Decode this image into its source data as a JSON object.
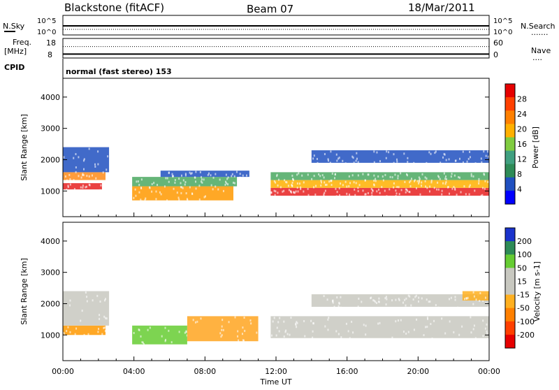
{
  "header": {
    "station": "Blackstone (fitACF)",
    "beam": "Beam 07",
    "date": "18/Mar/2011"
  },
  "noise": {
    "left_label": "N.Sky",
    "right_label": "N.Search",
    "tick_top": "10^5",
    "tick_bottom": "10^0",
    "right_marker": "......."
  },
  "freq": {
    "label_top": "Freq.",
    "label_unit": "[MHz]",
    "left_ticks": [
      "18",
      "8"
    ],
    "right_ticks": [
      "60",
      "0"
    ],
    "right_label": "Nave",
    "right_marker": "....",
    "freq_value": 10.0,
    "nave_value": 35
  },
  "cpid": {
    "label": "CPID",
    "value": "normal (fast stereo) 153"
  },
  "chart_data": [
    {
      "type": "heatmap",
      "name": "power",
      "ylabel": "Slant Range [km]",
      "xlabel": "Time UT",
      "x_ticks": [
        "00:00",
        "04:00",
        "08:00",
        "12:00",
        "16:00",
        "20:00",
        "00:00"
      ],
      "x_range_hours": [
        0,
        24
      ],
      "y_ticks": [
        "1000",
        "2000",
        "3000",
        "4000"
      ],
      "y_tick_values": [
        1000,
        2000,
        3000,
        4000
      ],
      "ylim": [
        180,
        4600
      ],
      "colorbar_label": "Power [dB]",
      "colorbar_ticks": [
        "28",
        "24",
        "20",
        "16",
        "12",
        "8",
        "4"
      ],
      "colorbar_colors": [
        "#e60000",
        "#ff4000",
        "#ff8000",
        "#ffb000",
        "#80cc40",
        "#40a080",
        "#2e8b57",
        "#2050c0",
        "#0000ff"
      ],
      "bands": [
        {
          "t": [
            0.0,
            2.2
          ],
          "r": [
            1050,
            1250
          ],
          "color": "#e62020"
        },
        {
          "t": [
            0.0,
            2.4
          ],
          "r": [
            1350,
            1600
          ],
          "color": "#ff8c1a"
        },
        {
          "t": [
            0.0,
            2.6
          ],
          "r": [
            1600,
            2400
          ],
          "color": "#2050c0"
        },
        {
          "t": [
            3.9,
            9.6
          ],
          "r": [
            700,
            1150
          ],
          "color": "#ff9900"
        },
        {
          "t": [
            3.9,
            9.8
          ],
          "r": [
            1150,
            1450
          ],
          "color": "#4aa860"
        },
        {
          "t": [
            5.5,
            10.5
          ],
          "r": [
            1450,
            1650
          ],
          "color": "#2050c0"
        },
        {
          "t": [
            11.7,
            24.0
          ],
          "r": [
            850,
            1100
          ],
          "color": "#e62020"
        },
        {
          "t": [
            11.7,
            24.0
          ],
          "r": [
            1100,
            1350
          ],
          "color": "#ffb000"
        },
        {
          "t": [
            11.7,
            24.0
          ],
          "r": [
            1350,
            1600
          ],
          "color": "#4aa860"
        },
        {
          "t": [
            14.0,
            24.0
          ],
          "r": [
            1900,
            2300
          ],
          "color": "#2050c0"
        }
      ]
    },
    {
      "type": "heatmap",
      "name": "velocity",
      "ylabel": "Slant Range [km]",
      "xlabel": "Time UT",
      "x_ticks": [
        "00:00",
        "04:00",
        "08:00",
        "12:00",
        "16:00",
        "20:00",
        "00:00"
      ],
      "x_range_hours": [
        0,
        24
      ],
      "y_ticks": [
        "1000",
        "2000",
        "3000",
        "4000"
      ],
      "y_tick_values": [
        1000,
        2000,
        3000,
        4000
      ],
      "ylim": [
        180,
        4600
      ],
      "colorbar_label": "Velocity [m s-1]",
      "colorbar_ticks": [
        "200",
        "100",
        "50",
        "15",
        "-15",
        "-50",
        "-100",
        "-200"
      ],
      "colorbar_colors": [
        "#1a33cc",
        "#2e8b57",
        "#66cc33",
        "#c8c8c0",
        "#c8c8c0",
        "#ffb020",
        "#ff8000",
        "#ff4000",
        "#e60000"
      ],
      "bands": [
        {
          "t": [
            0.0,
            2.4
          ],
          "r": [
            1000,
            1300
          ],
          "color": "#ff9900"
        },
        {
          "t": [
            0.0,
            2.6
          ],
          "r": [
            1300,
            2400
          ],
          "color": "#c8c8c0"
        },
        {
          "t": [
            3.9,
            7.0
          ],
          "r": [
            700,
            1300
          ],
          "color": "#66cc33"
        },
        {
          "t": [
            7.0,
            11.0
          ],
          "r": [
            800,
            1600
          ],
          "color": "#ffa520"
        },
        {
          "t": [
            11.7,
            24.0
          ],
          "r": [
            900,
            1600
          ],
          "color": "#c8c8c0"
        },
        {
          "t": [
            14.0,
            24.0
          ],
          "r": [
            1900,
            2300
          ],
          "color": "#c8c8c0"
        },
        {
          "t": [
            22.5,
            24.0
          ],
          "r": [
            2100,
            2400
          ],
          "color": "#ffb020"
        }
      ]
    }
  ]
}
